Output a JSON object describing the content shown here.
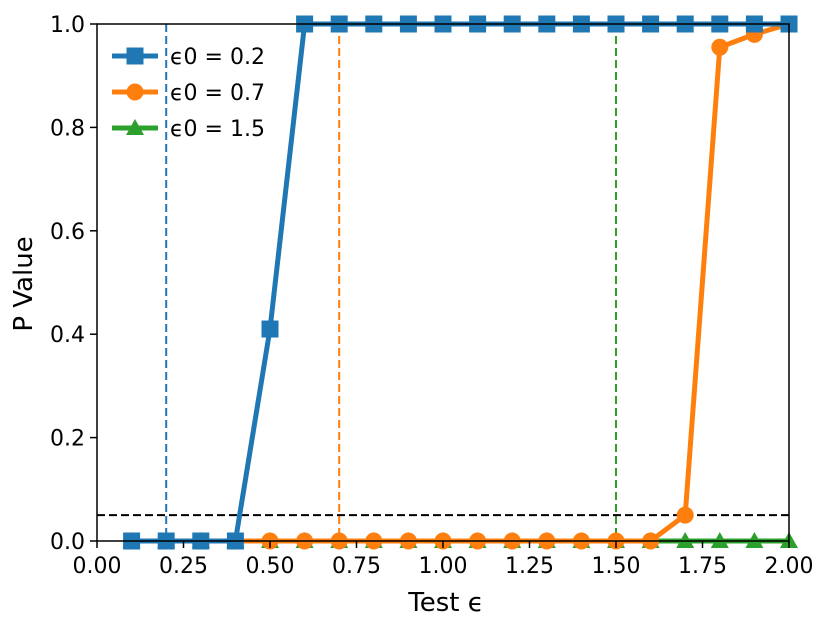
{
  "chart_data": {
    "type": "line",
    "xlabel": "Test ϵ",
    "ylabel": "P Value",
    "xlim": [
      0.0,
      2.0
    ],
    "ylim": [
      0.0,
      1.0
    ],
    "xticks": [
      0.0,
      0.25,
      0.5,
      0.75,
      1.0,
      1.25,
      1.5,
      1.75,
      2.0
    ],
    "xtick_labels": [
      "0.00",
      "0.25",
      "0.50",
      "0.75",
      "1.00",
      "1.25",
      "1.50",
      "1.75",
      "2.00"
    ],
    "yticks": [
      0.0,
      0.2,
      0.4,
      0.6,
      0.8,
      1.0
    ],
    "ytick_labels": [
      "0.0",
      "0.2",
      "0.4",
      "0.6",
      "0.8",
      "1.0"
    ],
    "grid": false,
    "legend_position": "top-left",
    "x": [
      0.1,
      0.2,
      0.3,
      0.4,
      0.5,
      0.6,
      0.7,
      0.8,
      0.9,
      1.0,
      1.1,
      1.2,
      1.3,
      1.4,
      1.5,
      1.6,
      1.7,
      1.8,
      1.9,
      2.0
    ],
    "series": [
      {
        "name": "ϵ0 = 0.2",
        "color": "#1f77b4",
        "marker": "square",
        "values": [
          0,
          0,
          0,
          0,
          0.41,
          1,
          1,
          1,
          1,
          1,
          1,
          1,
          1,
          1,
          1,
          1,
          1,
          1,
          1,
          1
        ]
      },
      {
        "name": "ϵ0 = 0.7",
        "color": "#ff7f0e",
        "marker": "circle",
        "values": [
          0,
          0,
          0,
          0,
          0,
          0,
          0,
          0,
          0,
          0,
          0,
          0,
          0,
          0,
          0,
          0,
          0.05,
          0.955,
          0.98,
          1.0
        ]
      },
      {
        "name": "ϵ0 = 1.5",
        "color": "#2ca02c",
        "marker": "triangle",
        "values": [
          0,
          0,
          0,
          0,
          0,
          0,
          0,
          0,
          0,
          0,
          0,
          0,
          0,
          0,
          0,
          0,
          0,
          0,
          0,
          0
        ]
      }
    ],
    "vlines": [
      {
        "x": 0.2,
        "color": "#1f77b4",
        "style": "dashed"
      },
      {
        "x": 0.7,
        "color": "#ff7f0e",
        "style": "dashed"
      },
      {
        "x": 1.5,
        "color": "#2ca02c",
        "style": "dashed"
      }
    ],
    "hlines": [
      {
        "y": 0.05,
        "color": "#000000",
        "style": "dashed"
      }
    ]
  }
}
